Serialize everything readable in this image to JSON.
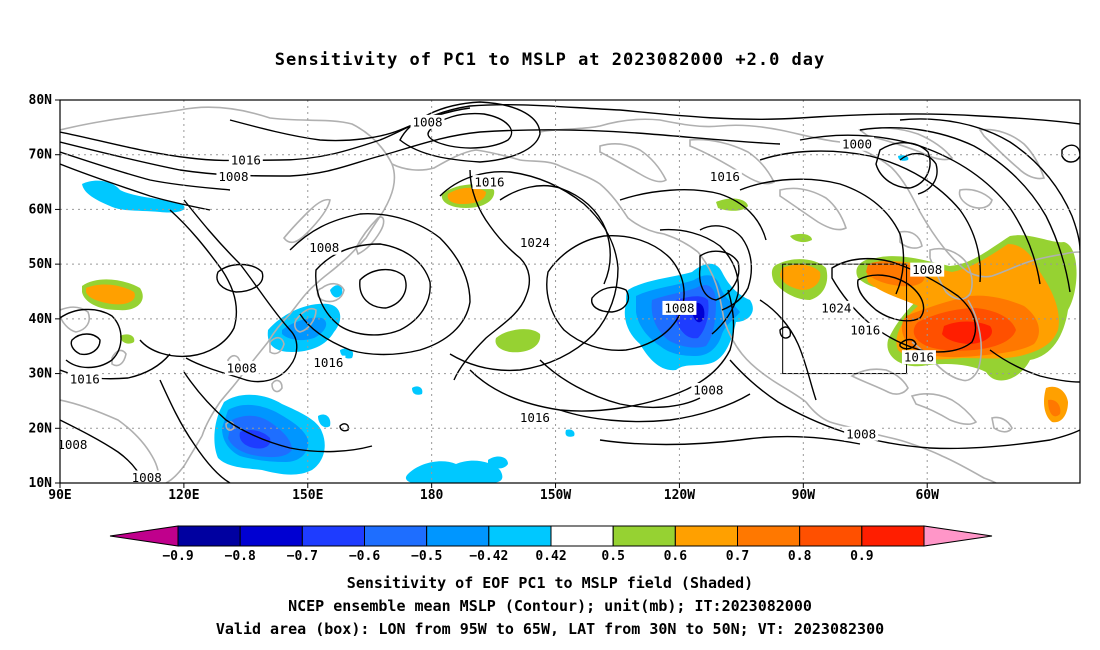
{
  "title": "Sensitivity of PC1 to MSLP at 2023082000 +2.0 day",
  "lat_labels": [
    "80N",
    "70N",
    "60N",
    "50N",
    "40N",
    "30N",
    "20N",
    "10N"
  ],
  "lon_labels": [
    "90E",
    "120E",
    "150E",
    "180",
    "150W",
    "120W",
    "90W",
    "60W"
  ],
  "contour_labels": [
    {
      "text": "1008",
      "lon": 179,
      "lat": 76
    },
    {
      "text": "1016",
      "lon": 135,
      "lat": 69
    },
    {
      "text": "1008",
      "lon": 132,
      "lat": 66
    },
    {
      "text": "1016",
      "lon": -166,
      "lat": 65
    },
    {
      "text": "1016",
      "lon": -109,
      "lat": 66
    },
    {
      "text": "1000",
      "lon": -77,
      "lat": 72
    },
    {
      "text": "1008",
      "lon": 154,
      "lat": 53
    },
    {
      "text": "1024",
      "lon": -155,
      "lat": 54
    },
    {
      "text": "1008",
      "lon": -120,
      "lat": 42
    },
    {
      "text": "1008",
      "lon": -60,
      "lat": 49
    },
    {
      "text": "1024",
      "lon": -82,
      "lat": 42
    },
    {
      "text": "1016",
      "lon": -75,
      "lat": 38
    },
    {
      "text": "1016",
      "lon": -62,
      "lat": 33
    },
    {
      "text": "1016",
      "lon": 96,
      "lat": 29
    },
    {
      "text": "1008",
      "lon": 134,
      "lat": 31
    },
    {
      "text": "1016",
      "lon": 155,
      "lat": 32
    },
    {
      "text": "1008",
      "lon": -113,
      "lat": 27
    },
    {
      "text": "1016",
      "lon": -155,
      "lat": 22
    },
    {
      "text": "1008",
      "lon": -76,
      "lat": 19
    },
    {
      "text": "1008",
      "lon": 93,
      "lat": 17
    },
    {
      "text": "1008",
      "lon": 111,
      "lat": 11
    }
  ],
  "colorbar": {
    "colors": [
      "#c0008c",
      "#0000a0",
      "#0000d2",
      "#1e3cff",
      "#1e6eff",
      "#0096ff",
      "#00c8ff",
      "#ffffff",
      "#96d232",
      "#ffa000",
      "#ff7800",
      "#ff5000",
      "#ff1e00",
      "#ff96c8"
    ],
    "labels": [
      "-0.9",
      "-0.8",
      "-0.7",
      "-0.6",
      "-0.5",
      "-0.42",
      "0.42",
      "0.5",
      "0.6",
      "0.7",
      "0.8",
      "0.9"
    ]
  },
  "valid_box": {
    "lon_min": -95,
    "lon_max": -65,
    "lat_min": 30,
    "lat_max": 50
  },
  "captions": [
    "Sensitivity of EOF PC1 to MSLP field (Shaded)",
    "NCEP ensemble mean MSLP (Contour); unit(mb); IT:2023082000",
    "Valid area (box): LON from 95W to 65W, LAT from 30N to 50N; VT: 2023082300"
  ]
}
